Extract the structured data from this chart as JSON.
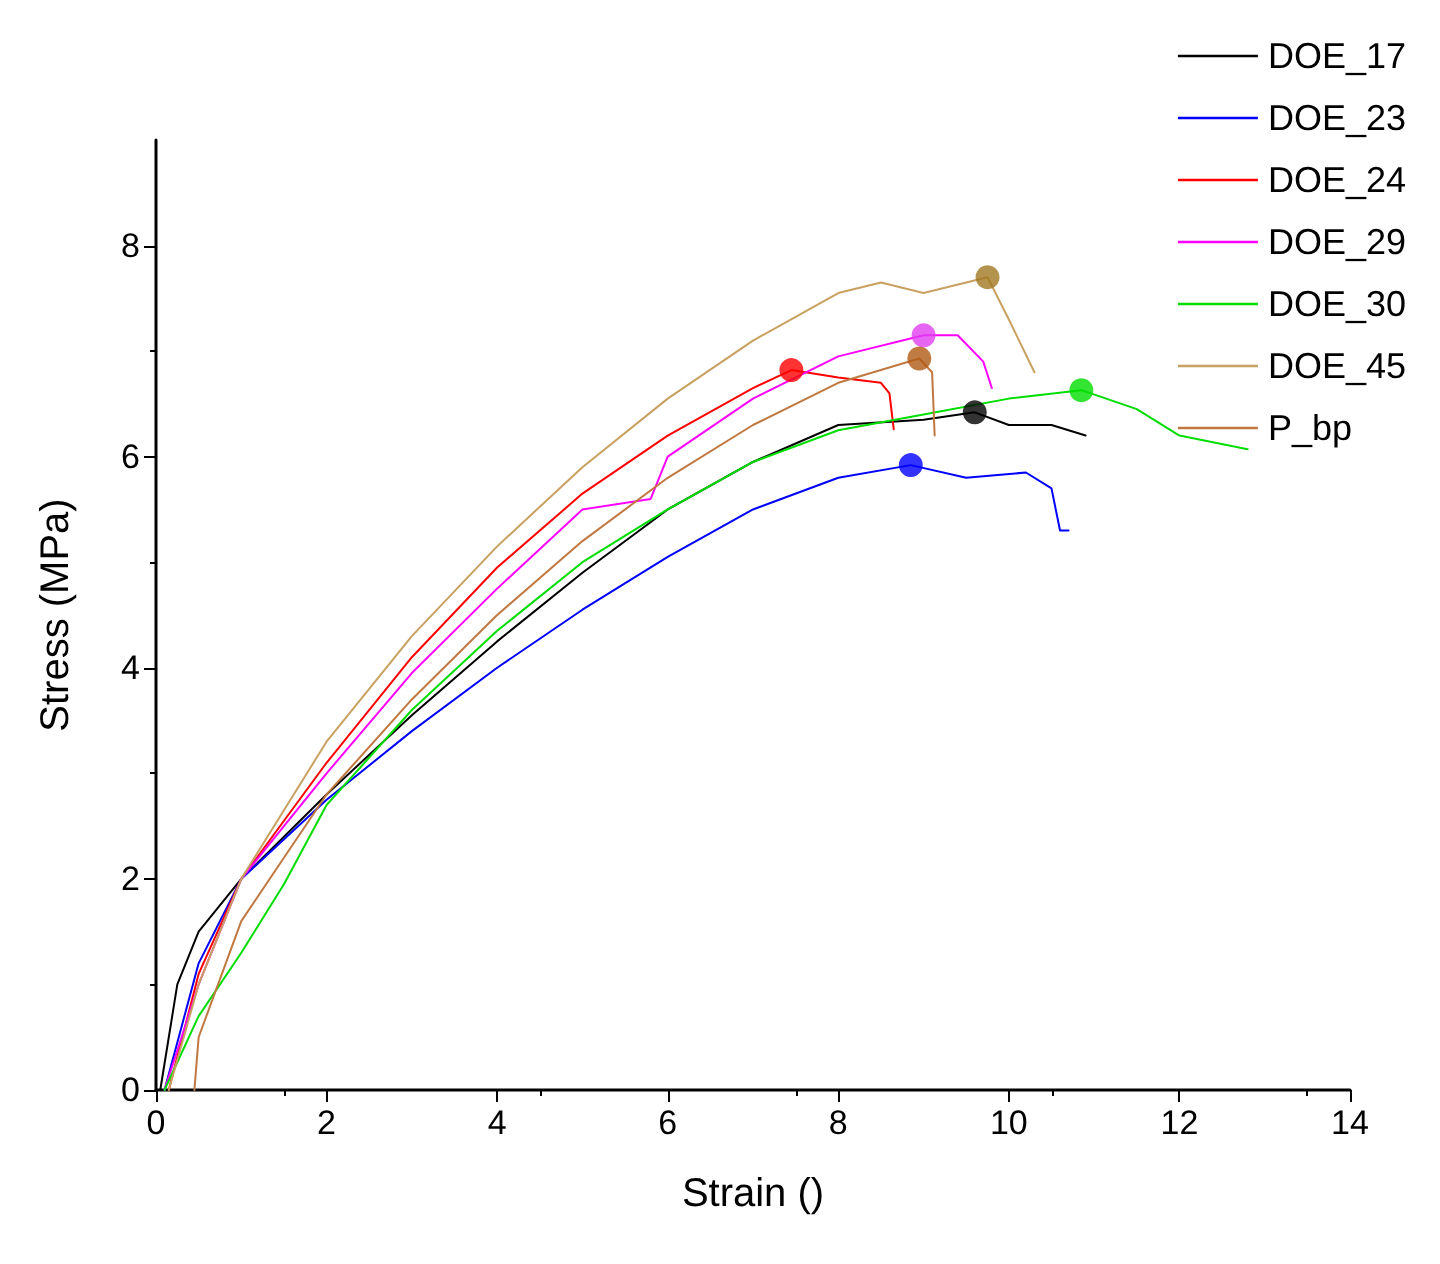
{
  "chart_data": {
    "type": "line",
    "xlabel": "Strain ()",
    "ylabel": "Stress (MPa)",
    "xlim": [
      0,
      14
    ],
    "xticks": [
      0,
      2,
      4,
      6,
      8,
      10,
      12,
      14
    ],
    "ylim": [
      0,
      9
    ],
    "yticks": [
      0,
      2,
      4,
      6,
      8
    ],
    "grid": false,
    "legend": "top right",
    "marker": "none",
    "line_style": "solid",
    "series": [
      {
        "name": "DOE_17",
        "color": "#000000",
        "x": [
          0.05,
          0.25,
          0.5,
          1,
          2,
          3,
          4,
          5,
          6,
          7,
          8,
          9,
          9.6,
          10,
          10.5,
          10.9
        ],
        "values": [
          0,
          1.0,
          1.5,
          2.0,
          2.8,
          3.55,
          4.25,
          4.9,
          5.5,
          5.95,
          6.3,
          6.35,
          6.42,
          6.3,
          6.3,
          6.2
        ]
      },
      {
        "name": "DOE_23",
        "color": "#0000ff",
        "x": [
          0.1,
          0.5,
          1,
          2,
          3,
          4,
          5,
          6,
          7,
          8,
          8.85,
          9.5,
          10.2,
          10.5,
          10.6,
          10.7
        ],
        "values": [
          0,
          1.2,
          2.0,
          2.75,
          3.4,
          4.0,
          4.55,
          5.05,
          5.5,
          5.8,
          5.92,
          5.8,
          5.85,
          5.7,
          5.3,
          5.3
        ]
      },
      {
        "name": "DOE_24",
        "color": "#ff0000",
        "x": [
          0.15,
          0.5,
          1,
          2,
          3,
          4,
          5,
          6,
          7,
          7.45,
          8,
          8.5,
          8.6,
          8.65
        ],
        "values": [
          0,
          1.1,
          2.0,
          3.1,
          4.1,
          4.95,
          5.65,
          6.2,
          6.65,
          6.82,
          6.75,
          6.7,
          6.6,
          6.26
        ]
      },
      {
        "name": "DOE_29",
        "color": "#ff00ff",
        "x": [
          0.1,
          0.5,
          1,
          2,
          3,
          4,
          5,
          5.8,
          6,
          7,
          8,
          9,
          9.4,
          9.7,
          9.8
        ],
        "values": [
          0,
          1.0,
          2.0,
          3.0,
          3.95,
          4.75,
          5.5,
          5.6,
          6.0,
          6.55,
          6.95,
          7.15,
          7.15,
          6.9,
          6.65
        ]
      },
      {
        "name": "DOE_30",
        "color": "#00dd00",
        "x": [
          0.1,
          0.5,
          1,
          1.5,
          2,
          3,
          4,
          5,
          6,
          7,
          8,
          9,
          10,
          10.85,
          11.5,
          12,
          12.8
        ],
        "values": [
          0,
          0.7,
          1.3,
          1.95,
          2.7,
          3.6,
          4.35,
          5.0,
          5.5,
          5.95,
          6.25,
          6.4,
          6.55,
          6.63,
          6.45,
          6.2,
          6.07
        ]
      },
      {
        "name": "DOE_45",
        "color": "#c8a060",
        "x": [
          0.15,
          0.5,
          1,
          2,
          3,
          4,
          5,
          6,
          7,
          8,
          8.5,
          9,
          9.75,
          10.0,
          10.3
        ],
        "values": [
          0,
          1.0,
          2.0,
          3.3,
          4.3,
          5.15,
          5.9,
          6.55,
          7.1,
          7.55,
          7.65,
          7.55,
          7.7,
          7.3,
          6.8
        ]
      },
      {
        "name": "P_bp",
        "color": "#c07840",
        "x": [
          0.45,
          0.5,
          1,
          1.5,
          2,
          3,
          4,
          5,
          6,
          7,
          8,
          8.95,
          9.1,
          9.13
        ],
        "values": [
          0,
          0.5,
          1.6,
          2.2,
          2.8,
          3.7,
          4.5,
          5.2,
          5.8,
          6.3,
          6.7,
          6.93,
          6.8,
          6.2
        ]
      },
      {
        "type": "scatter",
        "marker": "circle",
        "x": [
          9.6,
          8.85,
          7.45,
          9.0,
          10.85,
          9.75,
          8.95
        ],
        "values": [
          6.42,
          5.92,
          6.82,
          7.15,
          6.63,
          7.7,
          6.93
        ],
        "colors": [
          "#000000",
          "#0000ff",
          "#ff0000",
          "#e040f0",
          "#00dd00",
          "#a07820",
          "#b05a14"
        ]
      }
    ]
  }
}
